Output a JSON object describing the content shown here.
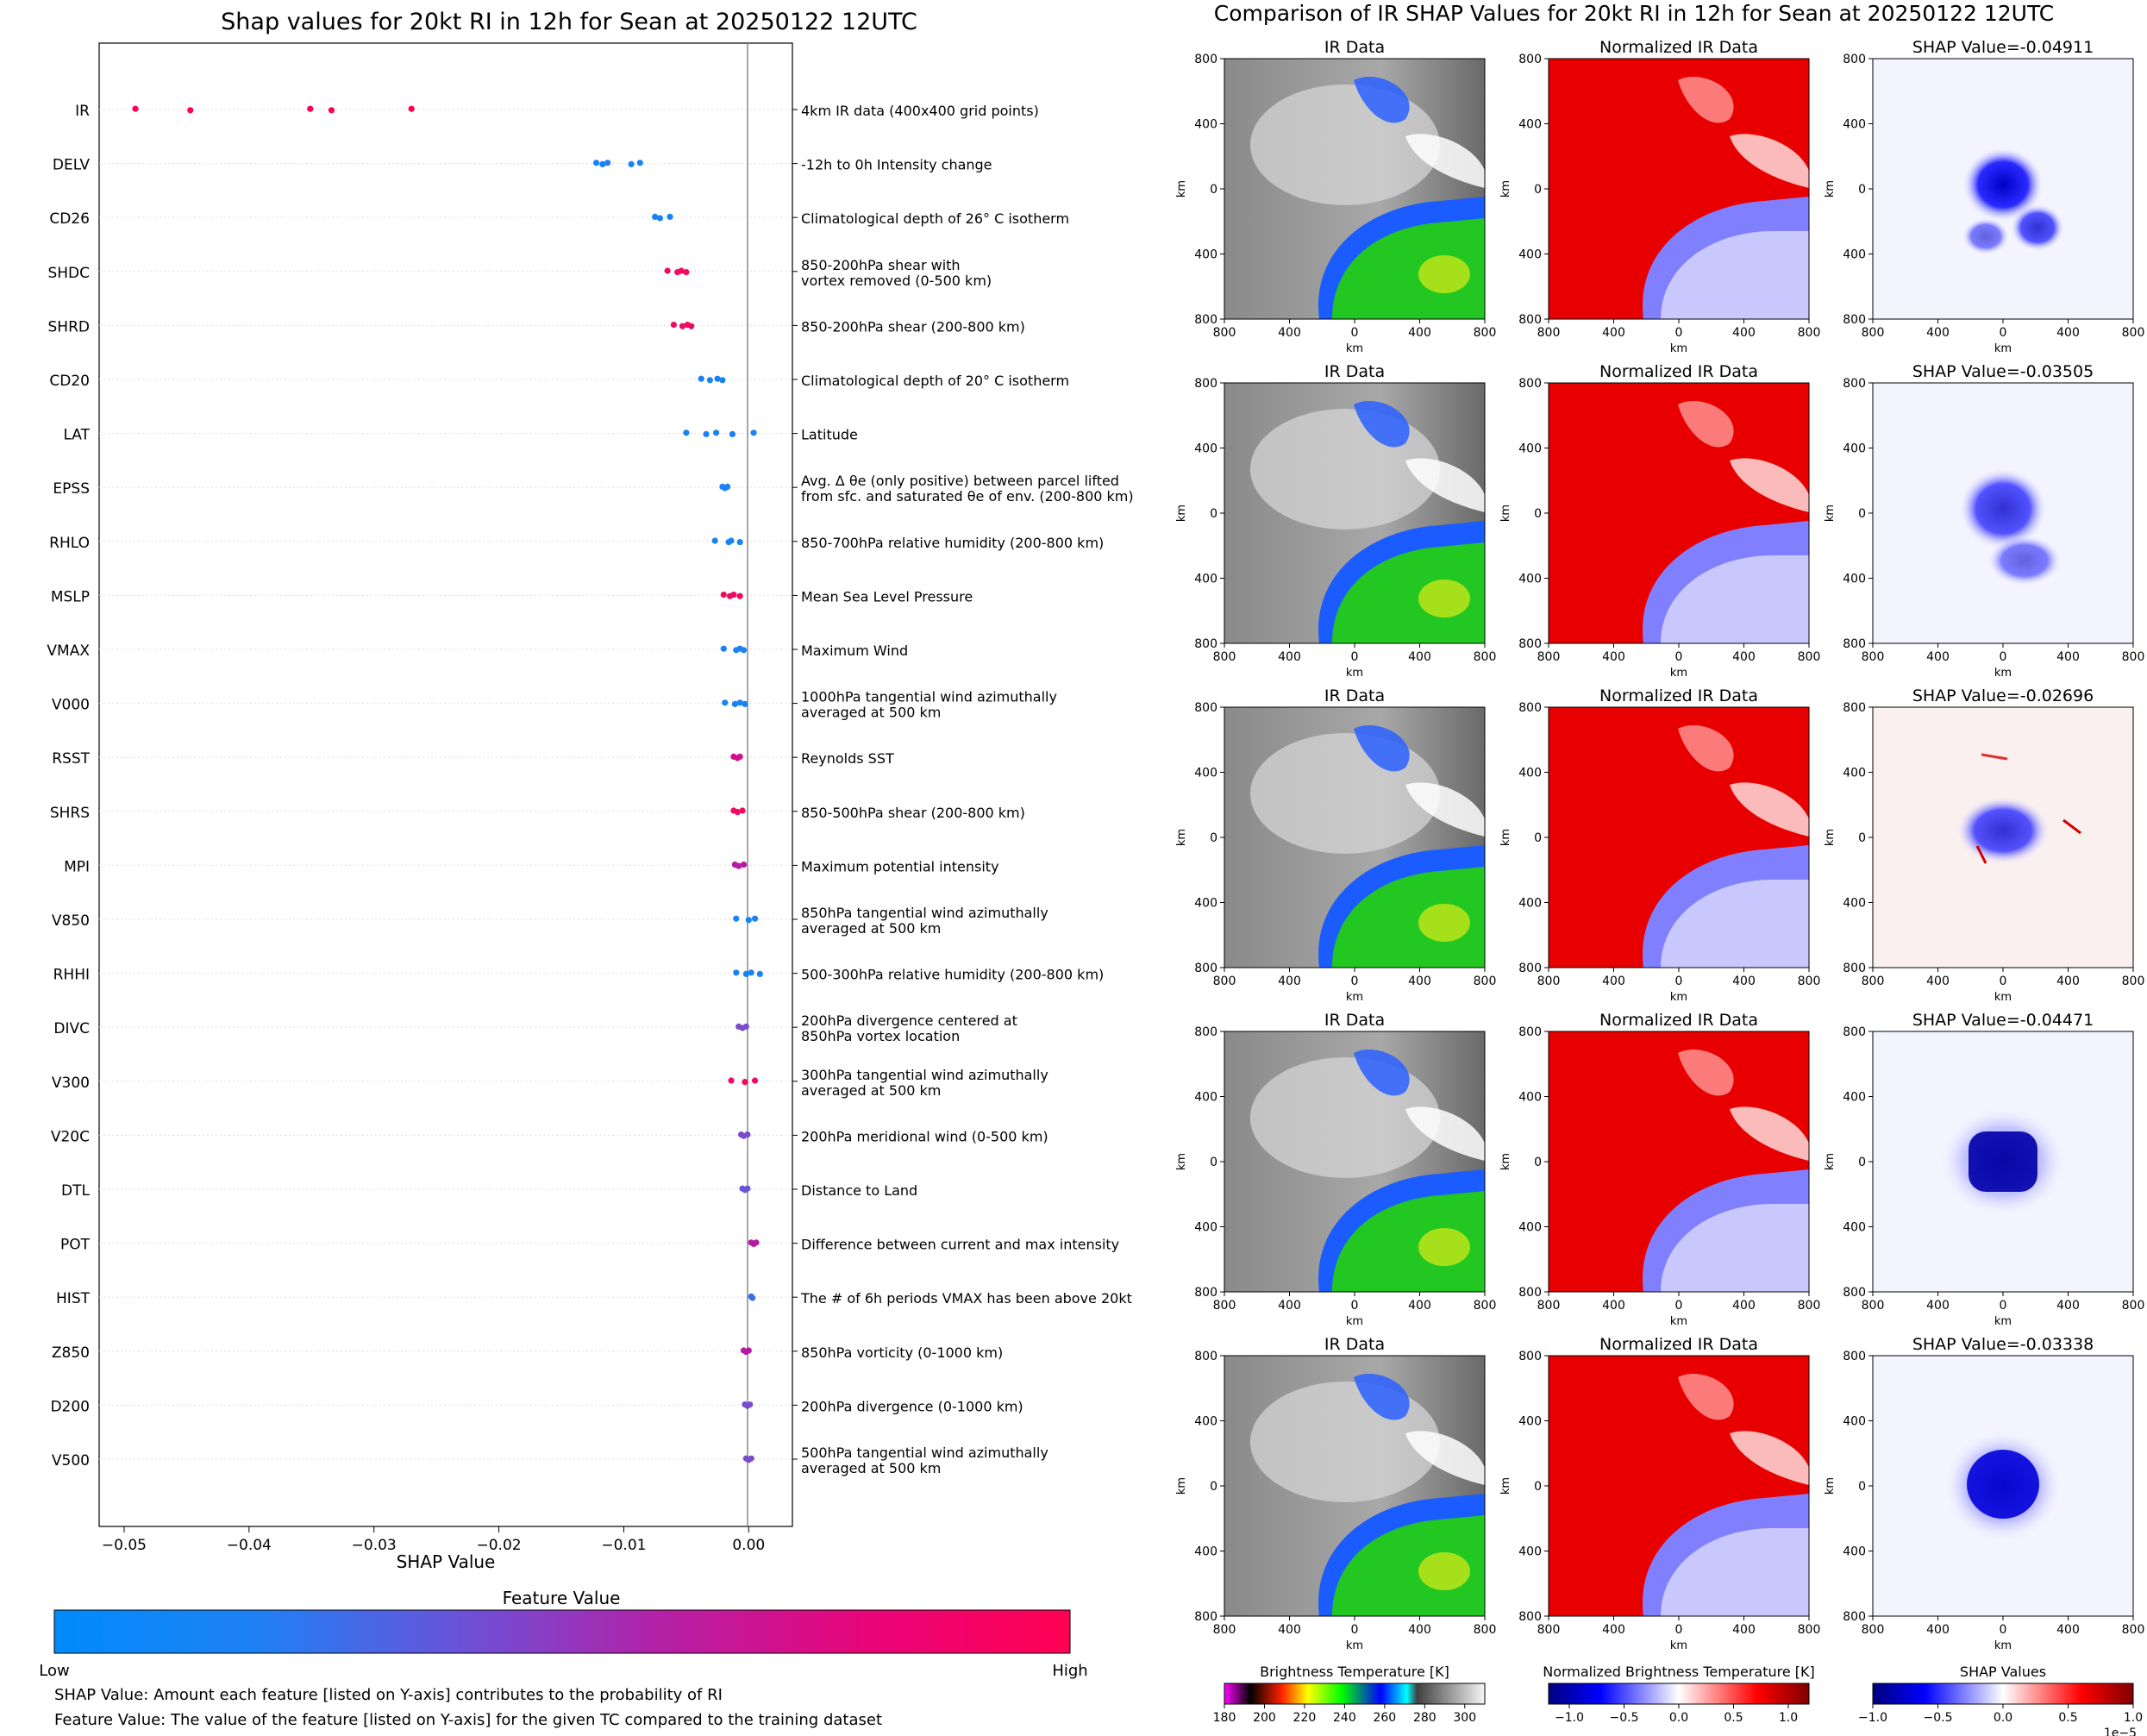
{
  "left": {
    "title": "Shap values for 20kt RI in 12h for Sean at 20250122 12UTC",
    "xlabel": "SHAP Value",
    "colorbar": {
      "title": "Feature Value",
      "low_label": "Low",
      "high_label": "High",
      "colors": [
        "#008bfb",
        "#6a52d8",
        "#b520a5",
        "#ff0052"
      ]
    },
    "notes": [
      "SHAP Value: Amount each feature [listed on Y-axis] contributes to the probability of RI",
      "Feature Value: The value of the feature [listed on Y-axis] for the given TC compared to the training dataset"
    ]
  },
  "chart_data": [
    {
      "type": "scatter",
      "subtype": "beeswarm",
      "title": "Shap values for 20kt RI in 12h for Sean at 20250122 12UTC",
      "xlabel": "SHAP Value",
      "ylabel": "",
      "xlim": [
        -0.052,
        0.0035
      ],
      "xticks": [
        -0.05,
        -0.04,
        -0.03,
        -0.02,
        -0.01,
        0.0
      ],
      "xtick_labels": [
        "−0.05",
        "−0.04",
        "−0.03",
        "−0.02",
        "−0.01",
        "0.00"
      ],
      "grid": "horizontal-dotted",
      "features": [
        {
          "name": "IR",
          "description": "4km IR data (400x400 grid points)",
          "shap": [
            -0.0491,
            -0.0447,
            -0.0351,
            -0.0334,
            -0.027
          ],
          "value_color": "#ff0052"
        },
        {
          "name": "DELV",
          "description": "-12h to 0h Intensity change",
          "shap": [
            -0.0122,
            -0.0117,
            -0.0113,
            -0.0094,
            -0.0087
          ],
          "value_color": "#1a82f4"
        },
        {
          "name": "CD26",
          "description": "Climatological depth of 26° C isotherm",
          "shap": [
            -0.0075,
            -0.0071,
            -0.0063
          ],
          "value_color": "#1a82f4"
        },
        {
          "name": "SHDC",
          "description": "850-200hPa shear with\nvortex removed (0-500 km)",
          "shap": [
            -0.0065,
            -0.0057,
            -0.0054,
            -0.005
          ],
          "value_color": "#ef0a63"
        },
        {
          "name": "SHRD",
          "description": "850-200hPa shear (200-800 km)",
          "shap": [
            -0.006,
            -0.0053,
            -0.0049,
            -0.0046
          ],
          "value_color": "#ef0a63"
        },
        {
          "name": "CD20",
          "description": "Climatological depth of 20° C isotherm",
          "shap": [
            -0.0038,
            -0.0031,
            -0.0025,
            -0.0021
          ],
          "value_color": "#1a82f4"
        },
        {
          "name": "LAT",
          "description": "Latitude",
          "shap": [
            -0.005,
            -0.0034,
            -0.0026,
            -0.0013,
            0.0004
          ],
          "value_color": "#1a82f4"
        },
        {
          "name": "EPSS",
          "description": "Avg. Δ θe (only positive) between parcel lifted\nfrom sfc. and saturated θe of env. (200-800 km)",
          "shap": [
            -0.0021,
            -0.0019,
            -0.0017
          ],
          "value_color": "#1a82f4"
        },
        {
          "name": "RHLO",
          "description": "850-700hPa relative humidity (200-800 km)",
          "shap": [
            -0.0027,
            -0.0016,
            -0.0014,
            -0.0007
          ],
          "value_color": "#1a82f4"
        },
        {
          "name": "MSLP",
          "description": "Mean Sea Level Pressure",
          "shap": [
            -0.002,
            -0.0015,
            -0.0012,
            -0.0007
          ],
          "value_color": "#ef0a63"
        },
        {
          "name": "VMAX",
          "description": "Maximum Wind",
          "shap": [
            -0.002,
            -0.001,
            -0.0007,
            -0.0004
          ],
          "value_color": "#1a82f4"
        },
        {
          "name": "V000",
          "description": "1000hPa tangential wind azimuthally\naveraged at 500 km",
          "shap": [
            -0.0019,
            -0.0011,
            -0.0007,
            -0.0003
          ],
          "value_color": "#1a82f4"
        },
        {
          "name": "RSST",
          "description": "Reynolds SST",
          "shap": [
            -0.0012,
            -0.0009,
            -0.0007
          ],
          "value_color": "#d1118a"
        },
        {
          "name": "SHRS",
          "description": "850-500hPa shear (200-800 km)",
          "shap": [
            -0.0012,
            -0.0009,
            -0.0005
          ],
          "value_color": "#ef0a63"
        },
        {
          "name": "MPI",
          "description": "Maximum potential intensity",
          "shap": [
            -0.0011,
            -0.0008,
            -0.0004
          ],
          "value_color": "#b51aa5"
        },
        {
          "name": "V850",
          "description": "850hPa tangential wind azimuthally\naveraged at 500 km",
          "shap": [
            -0.001,
            0.0,
            0.0005
          ],
          "value_color": "#1a82f4"
        },
        {
          "name": "RHHI",
          "description": "500-300hPa relative humidity (200-800 km)",
          "shap": [
            -0.001,
            -0.0002,
            0.0002,
            0.0009
          ],
          "value_color": "#1a82f4"
        },
        {
          "name": "DIVC",
          "description": "200hPa divergence centered at\n850hPa vortex location",
          "shap": [
            -0.0008,
            -0.0005,
            -0.0002
          ],
          "value_color": "#7a4ccc"
        },
        {
          "name": "V300",
          "description": "300hPa tangential wind azimuthally\naveraged at 500 km",
          "shap": [
            -0.0014,
            -0.0003,
            0.0005
          ],
          "value_color": "#ef0a63"
        },
        {
          "name": "V20C",
          "description": "200hPa meridional wind (0-500 km)",
          "shap": [
            -0.0006,
            -0.0004,
            -0.0001
          ],
          "value_color": "#7a4ccc"
        },
        {
          "name": "DTL",
          "description": "Distance to Land",
          "shap": [
            -0.0005,
            -0.0003,
            -0.0001
          ],
          "value_color": "#6a52d8"
        },
        {
          "name": "POT",
          "description": "Difference between current and max intensity",
          "shap": [
            0.0002,
            0.0004,
            0.0006
          ],
          "value_color": "#b51aa5"
        },
        {
          "name": "HIST",
          "description": "The # of 6h periods VMAX has been above 20kt",
          "shap": [
            0.0002,
            0.0003
          ],
          "value_color": "#3d6ee8"
        },
        {
          "name": "Z850",
          "description": "850hPa vorticity (0-1000 km)",
          "shap": [
            -0.0004,
            -0.0002,
            0.0
          ],
          "value_color": "#b51aa5"
        },
        {
          "name": "D200",
          "description": "200hPa divergence (0-1000 km)",
          "shap": [
            -0.0003,
            -0.0001,
            0.0001
          ],
          "value_color": "#7a4ccc"
        },
        {
          "name": "V500",
          "description": "500hPa tangential wind azimuthally\naveraged at 500 km",
          "shap": [
            -0.0002,
            0.0,
            0.0002
          ],
          "value_color": "#7a4ccc"
        }
      ]
    },
    {
      "type": "heatmap",
      "title": "Comparison of IR SHAP Values for 20kt RI in 12h for Sean at 20250122 12UTC",
      "grid_of_panels": "5 rows x 3 columns",
      "column_titles": [
        "IR Data",
        "Normalized IR Data",
        "SHAP Value"
      ],
      "shap_values": [
        -0.04911,
        -0.03505,
        -0.02696,
        -0.04471,
        -0.03338
      ],
      "shap_title_prefix": "SHAP Value=",
      "xlabel": "km",
      "ylabel": "km",
      "tick_labels": [
        "800",
        "400",
        "0",
        "400",
        "800"
      ],
      "colorbars": [
        {
          "title": "Brightness Temperature [K]",
          "ticks": [
            "180",
            "200",
            "220",
            "240",
            "260",
            "280",
            "300"
          ]
        },
        {
          "title": "Normalized Brightness Temperature [K]",
          "ticks": [
            "−1.0",
            "−0.5",
            "0.0",
            "0.5",
            "1.0"
          ]
        },
        {
          "title": "SHAP Values",
          "ticks": [
            "−1.0",
            "−0.5",
            "0.0",
            "0.5",
            "1.0"
          ],
          "offset": "1e−5"
        }
      ]
    }
  ],
  "right": {
    "title": "Comparison of IR SHAP Values for 20kt RI in 12h for Sean at 20250122 12UTC",
    "col1_title": "IR Data",
    "col2_title": "Normalized IR Data",
    "shap_title_prefix": "SHAP Value=",
    "axis_unit": "km"
  }
}
